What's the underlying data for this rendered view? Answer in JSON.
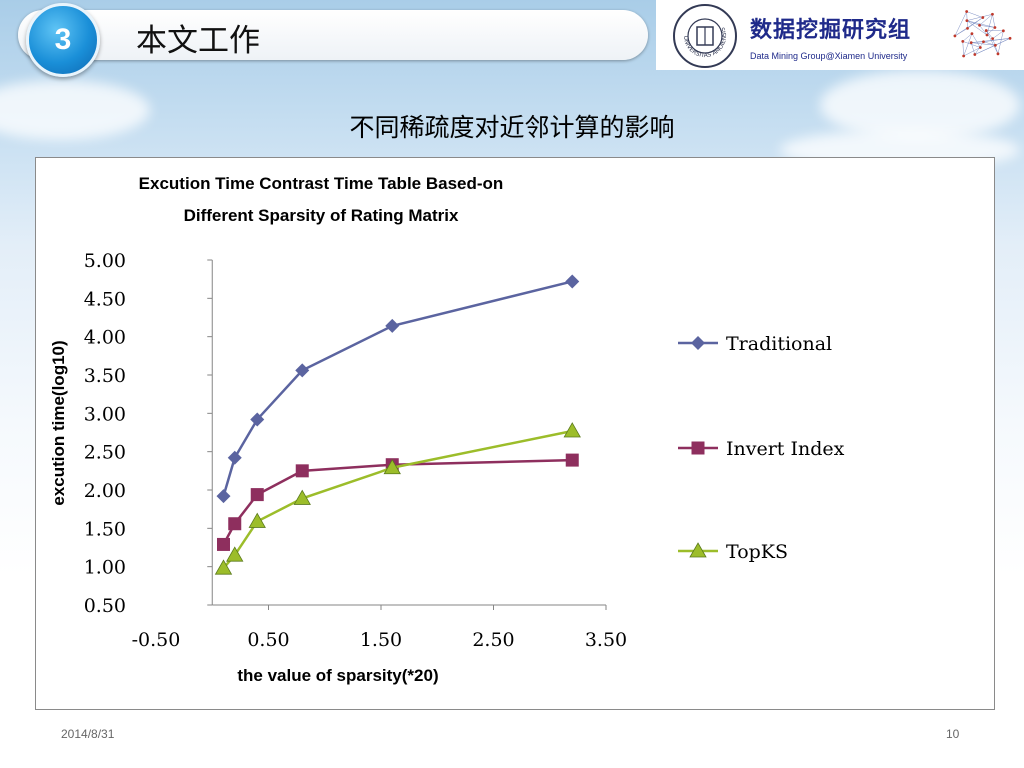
{
  "header": {
    "section_number": "3",
    "title": "本文工作"
  },
  "logo": {
    "name_cn": "数据挖掘研究组",
    "name_en": "Data Mining Group@Xiamen University",
    "seal_text": "UNIVERSITAS AMOIENSIS"
  },
  "slide": {
    "subtitle": "不同稀疏度对近邻计算的影响",
    "date": "2014/8/31",
    "page_number": "10"
  },
  "chart_data": {
    "type": "scatter",
    "title": [
      "Excution Time Contrast Time Table Based-on",
      "Different Sparsity of Rating Matrix"
    ],
    "xlabel": "the value of sparsity(*20)",
    "ylabel": "excution time(log10)",
    "xlim": [
      -0.5,
      3.5
    ],
    "ylim": [
      0.5,
      5.0
    ],
    "x_ticks": [
      "-0.50",
      "0.50",
      "1.50",
      "2.50",
      "3.50"
    ],
    "y_ticks": [
      "0.50",
      "1.00",
      "1.50",
      "2.00",
      "2.50",
      "3.00",
      "3.50",
      "4.00",
      "4.50",
      "5.00"
    ],
    "legend_position": "right",
    "series": [
      {
        "name": "Traditional",
        "marker": "diamond",
        "color": "#5b64a0",
        "x": [
          0.1,
          0.2,
          0.4,
          0.8,
          1.6,
          3.2
        ],
        "y": [
          1.92,
          2.42,
          2.92,
          3.56,
          4.14,
          4.72
        ]
      },
      {
        "name": "Invert Index",
        "marker": "square",
        "color": "#8e2f5e",
        "x": [
          0.1,
          0.2,
          0.4,
          0.8,
          1.6,
          3.2
        ],
        "y": [
          1.29,
          1.56,
          1.94,
          2.25,
          2.33,
          2.39
        ]
      },
      {
        "name": "TopKS",
        "marker": "triangle",
        "color": "#9cbd2a",
        "x": [
          0.1,
          0.2,
          0.4,
          0.8,
          1.6,
          3.2
        ],
        "y": [
          0.98,
          1.15,
          1.59,
          1.89,
          2.29,
          2.77
        ]
      }
    ]
  }
}
